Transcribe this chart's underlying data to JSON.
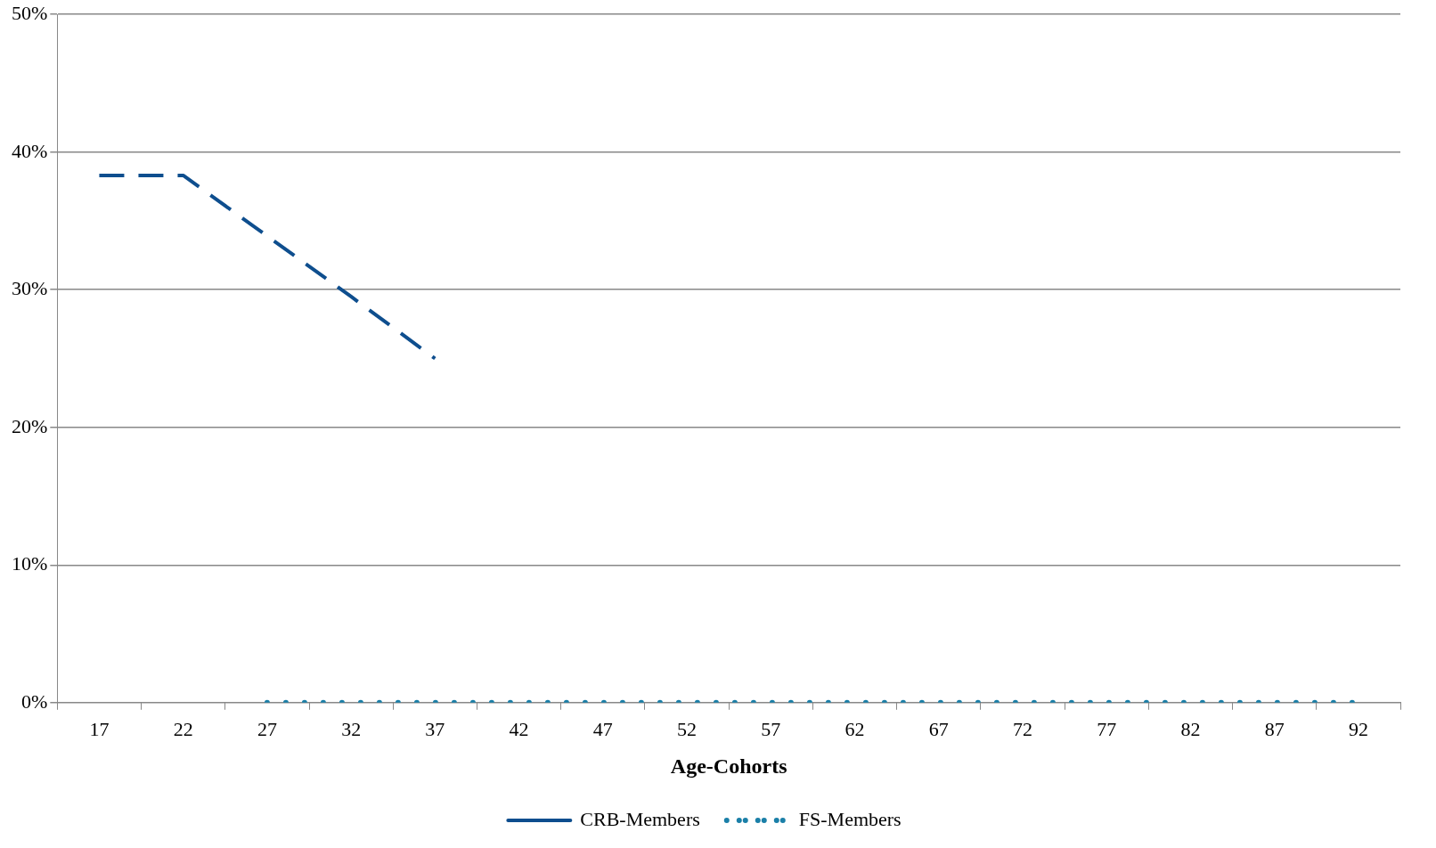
{
  "chart_data": {
    "type": "line",
    "xlabel": "Age-Cohorts",
    "categories": [
      "17",
      "22",
      "27",
      "32",
      "37",
      "42",
      "47",
      "52",
      "57",
      "62",
      "67",
      "72",
      "77",
      "82",
      "87",
      "92"
    ],
    "series": [
      {
        "name": "CRB-Members",
        "color": "#0e4e8e",
        "line_style": "dashed",
        "values": [
          38.3,
          38.3,
          33.9,
          29.5,
          25,
          null,
          null,
          null,
          null,
          null,
          null,
          null,
          null,
          null,
          null,
          null
        ]
      },
      {
        "name": "FS-Members",
        "color": "#1a7fa8",
        "line_style": "dotted",
        "values": [
          null,
          null,
          0,
          0,
          0,
          0,
          0,
          0,
          0,
          0,
          0,
          0,
          0,
          0,
          0,
          0
        ]
      }
    ],
    "ylim": [
      0,
      50
    ],
    "yticks": [
      {
        "value": 0,
        "label": "0%"
      },
      {
        "value": 10,
        "label": "10%"
      },
      {
        "value": 20,
        "label": "20%"
      },
      {
        "value": 30,
        "label": "30%"
      },
      {
        "value": 40,
        "label": "40%"
      },
      {
        "value": 50,
        "label": "50%"
      }
    ],
    "grid": "y",
    "legend": "bottom",
    "marker": "none"
  }
}
